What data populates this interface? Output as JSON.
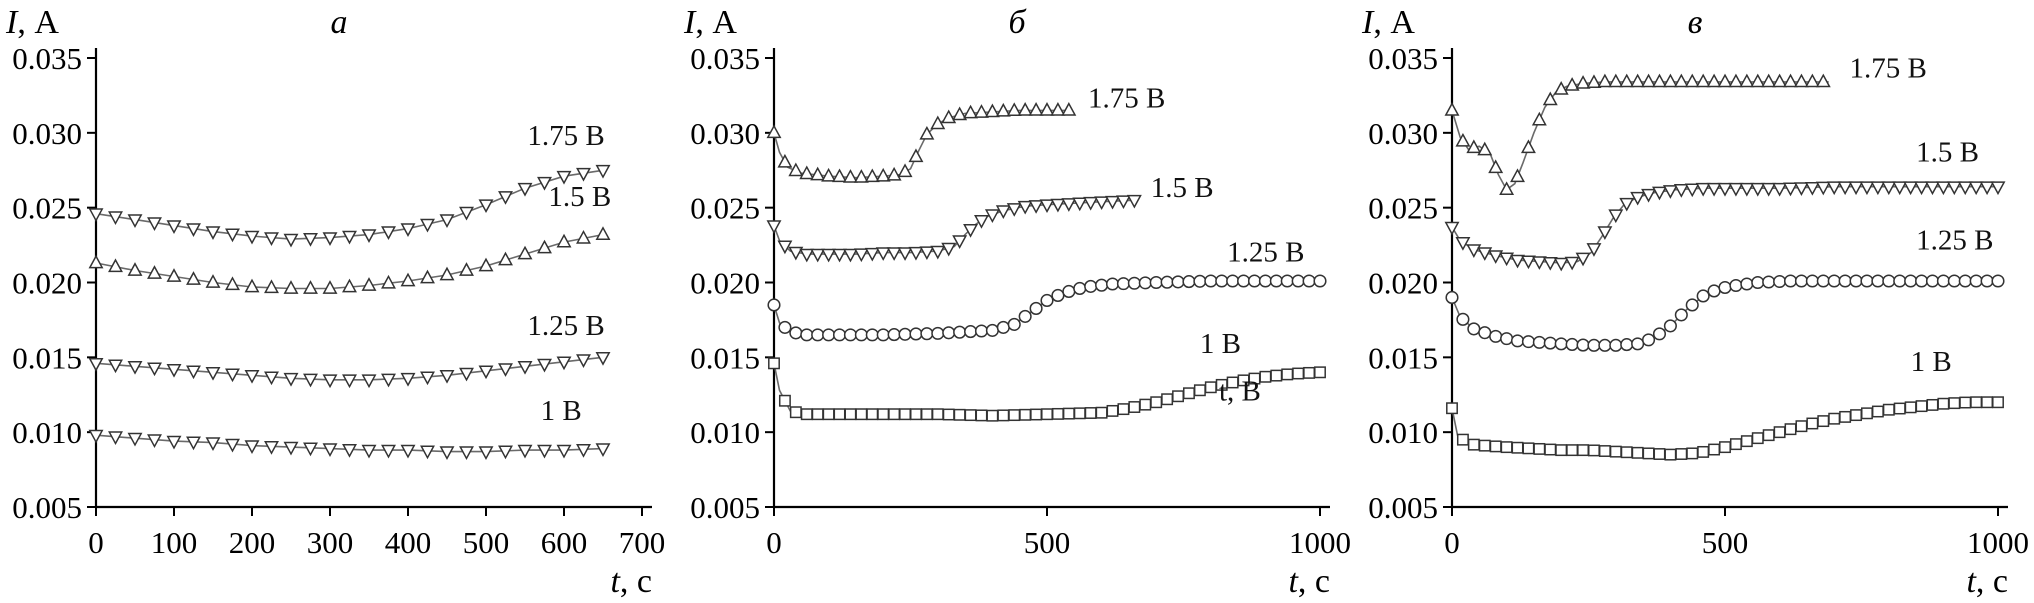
{
  "figure": {
    "background": "#ffffff",
    "axis_color": "#000000",
    "line_color": "#6a6a6a",
    "marker_color": "#333333",
    "text_color": "#111111"
  },
  "chart_data": [
    {
      "type": "line",
      "panel_label": "а",
      "y_label": {
        "var": "I",
        "rest": ", А"
      },
      "x_label": {
        "var": "t",
        "rest": ", с"
      },
      "xlim": [
        0,
        700
      ],
      "ylim": [
        0.005,
        0.035
      ],
      "x_ticks": [
        0,
        100,
        200,
        300,
        400,
        500,
        600,
        700
      ],
      "y_ticks": [
        0.005,
        0.01,
        0.015,
        0.02,
        0.025,
        0.03,
        0.035
      ],
      "grid": false,
      "series": [
        {
          "name": "1.75 В",
          "marker": "triangle-down",
          "marker_step": 25,
          "label_pos": [
            553,
            0.0292
          ],
          "x": [
            0,
            50,
            100,
            150,
            200,
            250,
            300,
            350,
            400,
            450,
            500,
            550,
            600,
            650
          ],
          "y": [
            0.0246,
            0.0242,
            0.0238,
            0.0234,
            0.0231,
            0.0229,
            0.023,
            0.0232,
            0.0236,
            0.0242,
            0.0252,
            0.0263,
            0.0271,
            0.0275
          ]
        },
        {
          "name": "1.5 В",
          "marker": "triangle-up",
          "marker_step": 25,
          "label_pos": [
            580,
            0.0251
          ],
          "x": [
            0,
            50,
            100,
            150,
            200,
            250,
            300,
            350,
            400,
            450,
            500,
            550,
            600,
            650
          ],
          "y": [
            0.0213,
            0.0208,
            0.0204,
            0.02,
            0.0197,
            0.0196,
            0.0196,
            0.0198,
            0.0201,
            0.0205,
            0.0211,
            0.0219,
            0.0227,
            0.0232
          ]
        },
        {
          "name": "1.25 В",
          "marker": "triangle-down",
          "marker_step": 25,
          "label_pos": [
            553,
            0.0165
          ],
          "x": [
            0,
            50,
            100,
            150,
            200,
            250,
            300,
            350,
            400,
            450,
            500,
            550,
            600,
            650
          ],
          "y": [
            0.0146,
            0.0144,
            0.0142,
            0.014,
            0.0138,
            0.0136,
            0.0135,
            0.0135,
            0.0136,
            0.0138,
            0.0141,
            0.0144,
            0.0147,
            0.015
          ]
        },
        {
          "name": "1 В",
          "marker": "triangle-down",
          "marker_step": 25,
          "label_pos": [
            570,
            0.0108
          ],
          "x": [
            0,
            50,
            100,
            150,
            200,
            250,
            300,
            350,
            400,
            450,
            500,
            550,
            600,
            650
          ],
          "y": [
            0.0098,
            0.0096,
            0.0094,
            0.0093,
            0.0091,
            0.009,
            0.0089,
            0.0088,
            0.0088,
            0.0087,
            0.0087,
            0.0088,
            0.0088,
            0.0089
          ]
        }
      ],
      "annotations": []
    },
    {
      "type": "line",
      "panel_label": "б",
      "y_label": {
        "var": "I",
        "rest": ", А"
      },
      "x_label": {
        "var": "t",
        "rest": ", с"
      },
      "xlim": [
        0,
        1000
      ],
      "ylim": [
        0.005,
        0.035
      ],
      "x_ticks": [
        0,
        500,
        1000
      ],
      "y_ticks": [
        0.005,
        0.01,
        0.015,
        0.02,
        0.025,
        0.03,
        0.035
      ],
      "grid": false,
      "series": [
        {
          "name": "1.75 В",
          "marker": "triangle-up",
          "marker_step": 20,
          "label_pos": [
            575,
            0.0317
          ],
          "x": [
            0,
            10,
            25,
            50,
            100,
            150,
            200,
            230,
            250,
            265,
            280,
            300,
            320,
            350,
            400,
            450,
            500,
            545
          ],
          "y": [
            0.03,
            0.0287,
            0.0277,
            0.0273,
            0.0271,
            0.027,
            0.0271,
            0.0272,
            0.0276,
            0.0288,
            0.0299,
            0.0306,
            0.031,
            0.0313,
            0.0314,
            0.0315,
            0.0315,
            0.0315
          ]
        },
        {
          "name": "1.5 В",
          "marker": "triangle-down",
          "marker_step": 20,
          "label_pos": [
            690,
            0.0257
          ],
          "x": [
            0,
            10,
            30,
            60,
            100,
            150,
            200,
            250,
            300,
            330,
            350,
            370,
            390,
            420,
            460,
            500,
            550,
            600,
            660
          ],
          "y": [
            0.0238,
            0.0228,
            0.0221,
            0.0219,
            0.0219,
            0.0219,
            0.022,
            0.022,
            0.0221,
            0.0224,
            0.0232,
            0.0239,
            0.0244,
            0.0248,
            0.0251,
            0.0252,
            0.0253,
            0.0254,
            0.0255
          ]
        },
        {
          "name": "1.25 В",
          "marker": "circle",
          "marker_step": 20,
          "label_pos": [
            830,
            0.0214
          ],
          "x": [
            0,
            10,
            30,
            60,
            100,
            200,
            300,
            400,
            440,
            470,
            500,
            530,
            570,
            620,
            700,
            800,
            900,
            1000
          ],
          "y": [
            0.0185,
            0.0173,
            0.0167,
            0.0165,
            0.0165,
            0.0165,
            0.0166,
            0.0168,
            0.0172,
            0.018,
            0.0188,
            0.0193,
            0.0197,
            0.0199,
            0.02,
            0.0201,
            0.0201,
            0.0201
          ]
        },
        {
          "name": "1 В",
          "marker": "square",
          "marker_step": 20,
          "label_pos": [
            780,
            0.0153
          ],
          "x": [
            0,
            10,
            30,
            60,
            100,
            200,
            300,
            400,
            500,
            600,
            650,
            700,
            750,
            800,
            850,
            900,
            950,
            1000
          ],
          "y": [
            0.0146,
            0.0128,
            0.0114,
            0.0112,
            0.0112,
            0.0112,
            0.0112,
            0.0111,
            0.0112,
            0.0113,
            0.0116,
            0.012,
            0.0125,
            0.013,
            0.0134,
            0.0137,
            0.0139,
            0.014
          ]
        }
      ],
      "annotations": [
        {
          "text": "t, В",
          "pos": [
            815,
            0.0121
          ]
        }
      ]
    },
    {
      "type": "line",
      "panel_label": "в",
      "y_label": {
        "var": "I",
        "rest": ", А"
      },
      "x_label": {
        "var": "t",
        "rest": ", с"
      },
      "xlim": [
        0,
        1000
      ],
      "ylim": [
        0.005,
        0.035
      ],
      "x_ticks": [
        0,
        500,
        1000
      ],
      "y_ticks": [
        0.005,
        0.01,
        0.015,
        0.02,
        0.025,
        0.03,
        0.035
      ],
      "grid": false,
      "series": [
        {
          "name": "1.75 В",
          "marker": "triangle-up",
          "marker_step": 20,
          "label_pos": [
            728,
            0.0337
          ],
          "x": [
            0,
            15,
            30,
            50,
            70,
            85,
            100,
            115,
            130,
            150,
            170,
            190,
            210,
            240,
            280,
            330,
            380,
            430,
            480,
            530,
            580,
            630,
            690
          ],
          "y": [
            0.0315,
            0.0297,
            0.0289,
            0.0291,
            0.0286,
            0.0272,
            0.0262,
            0.0266,
            0.028,
            0.03,
            0.0317,
            0.0327,
            0.0331,
            0.0333,
            0.0334,
            0.0334,
            0.0334,
            0.0334,
            0.0334,
            0.0334,
            0.0334,
            0.0334,
            0.0334
          ]
        },
        {
          "name": "1.5 В",
          "marker": "triangle-down",
          "marker_step": 20,
          "label_pos": [
            850,
            0.0281
          ],
          "x": [
            0,
            15,
            40,
            80,
            120,
            160,
            200,
            230,
            255,
            275,
            295,
            315,
            340,
            370,
            410,
            460,
            520,
            600,
            700,
            800,
            900,
            1000
          ],
          "y": [
            0.0237,
            0.0228,
            0.0222,
            0.0218,
            0.0215,
            0.0214,
            0.0213,
            0.0214,
            0.022,
            0.0231,
            0.0243,
            0.0252,
            0.0257,
            0.026,
            0.0262,
            0.0263,
            0.0263,
            0.0263,
            0.0264,
            0.0264,
            0.0264,
            0.0264
          ]
        },
        {
          "name": "1.25 В",
          "marker": "circle",
          "marker_step": 20,
          "label_pos": [
            850,
            0.0222
          ],
          "x": [
            0,
            15,
            40,
            80,
            120,
            160,
            200,
            250,
            300,
            340,
            370,
            400,
            430,
            460,
            490,
            520,
            560,
            620,
            700,
            800,
            900,
            1000
          ],
          "y": [
            0.019,
            0.0177,
            0.0169,
            0.0164,
            0.0161,
            0.016,
            0.0159,
            0.0158,
            0.0158,
            0.0159,
            0.0163,
            0.0171,
            0.0182,
            0.0191,
            0.0196,
            0.0198,
            0.02,
            0.0201,
            0.0201,
            0.0201,
            0.0201,
            0.0201
          ]
        },
        {
          "name": "1 В",
          "marker": "square",
          "marker_step": 20,
          "label_pos": [
            840,
            0.0141
          ],
          "x": [
            0,
            10,
            30,
            60,
            100,
            150,
            200,
            250,
            300,
            350,
            400,
            450,
            500,
            550,
            600,
            650,
            700,
            750,
            800,
            850,
            900,
            950,
            1000
          ],
          "y": [
            0.0116,
            0.0098,
            0.0092,
            0.0091,
            0.009,
            0.0089,
            0.0088,
            0.0088,
            0.0087,
            0.0086,
            0.0085,
            0.0086,
            0.009,
            0.0095,
            0.01,
            0.0105,
            0.0109,
            0.0112,
            0.0115,
            0.0117,
            0.0119,
            0.012,
            0.012
          ]
        }
      ],
      "annotations": []
    }
  ]
}
